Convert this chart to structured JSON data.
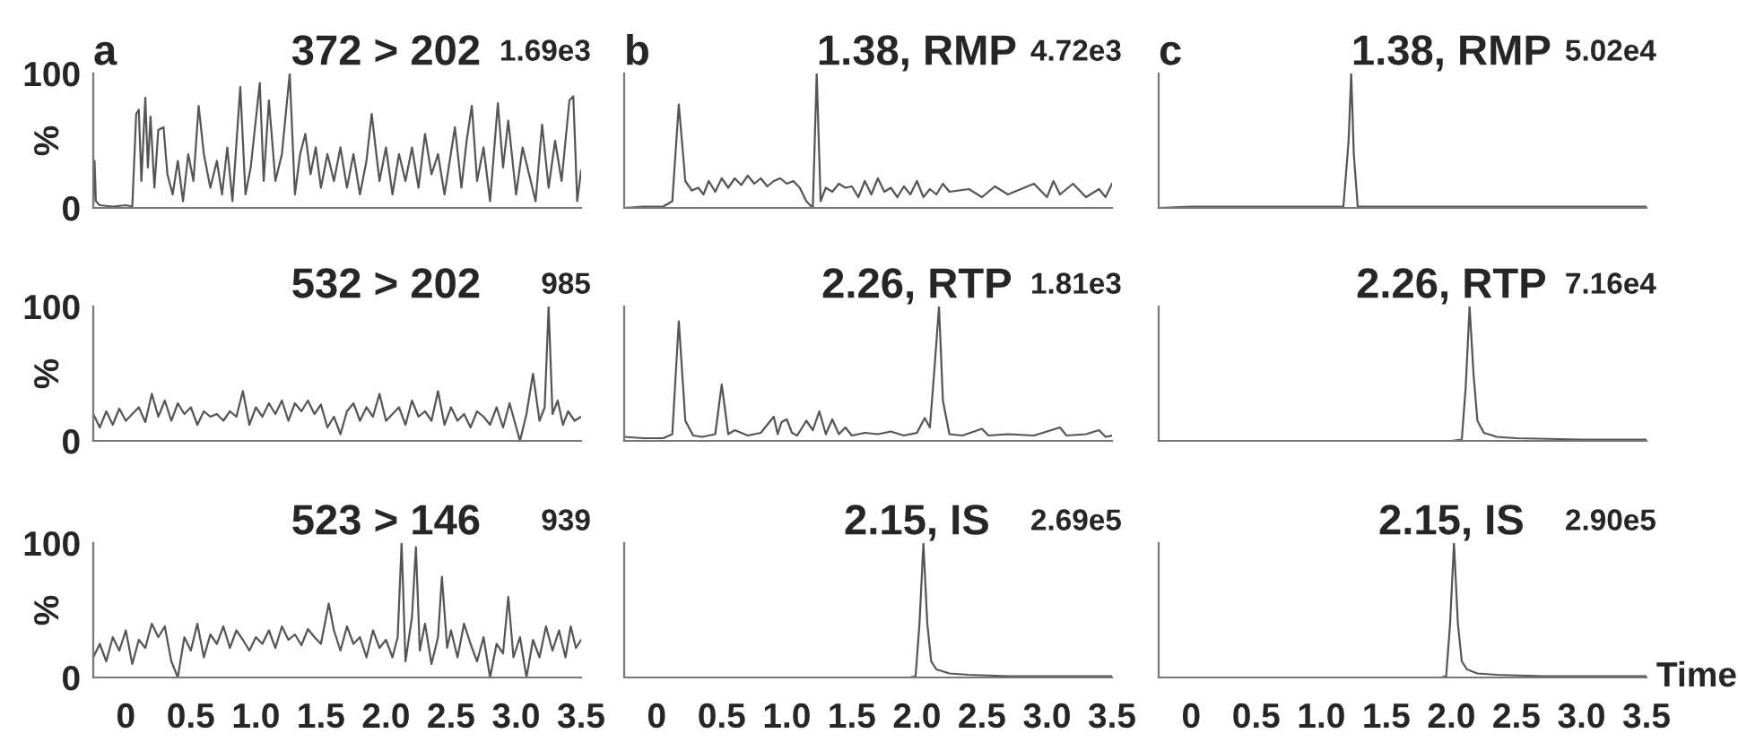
{
  "chart_data": [
    {
      "type": "line",
      "title": "372 > 202",
      "annotations": [
        "a",
        "1.69e3"
      ],
      "ylabel": "%",
      "tick_labels": "y",
      "xlim": [
        -0.25,
        3.5
      ],
      "xticks": [
        0,
        0.5,
        1,
        1.5,
        2,
        2.5,
        3,
        3.5
      ],
      "ylim": [
        0,
        100
      ],
      "yticks": [
        0,
        100
      ],
      "series": [
        {
          "color": "#555555",
          "x": [
            -0.25,
            -0.24,
            -0.23,
            -0.2,
            -0.1,
            0.0,
            0.05,
            0.08,
            0.1,
            0.12,
            0.15,
            0.17,
            0.19,
            0.22,
            0.25,
            0.29,
            0.32,
            0.36,
            0.4,
            0.44,
            0.48,
            0.52,
            0.56,
            0.6,
            0.65,
            0.7,
            0.74,
            0.78,
            0.82,
            0.88,
            0.92,
            0.96,
            1.03,
            1.06,
            1.1,
            1.15,
            1.2,
            1.26,
            1.3,
            1.34,
            1.38,
            1.42,
            1.46,
            1.5,
            1.55,
            1.6,
            1.65,
            1.7,
            1.75,
            1.8,
            1.85,
            1.89,
            1.95,
            2.0,
            2.05,
            2.1,
            2.15,
            2.2,
            2.25,
            2.3,
            2.35,
            2.4,
            2.45,
            2.53,
            2.58,
            2.62,
            2.66,
            2.7,
            2.75,
            2.8,
            2.86,
            2.9,
            2.94,
            3.0,
            3.05,
            3.1,
            3.15,
            3.2,
            3.25,
            3.3,
            3.35,
            3.41,
            3.44,
            3.47,
            3.5
          ],
          "values": [
            2,
            35,
            5,
            2,
            1,
            2,
            1,
            70,
            73,
            20,
            82,
            30,
            68,
            15,
            58,
            60,
            25,
            10,
            35,
            5,
            40,
            20,
            76,
            40,
            15,
            35,
            10,
            45,
            5,
            90,
            10,
            30,
            93,
            20,
            80,
            20,
            40,
            100,
            10,
            40,
            55,
            25,
            45,
            15,
            40,
            20,
            45,
            15,
            40,
            10,
            35,
            70,
            20,
            45,
            10,
            40,
            20,
            45,
            15,
            55,
            25,
            40,
            10,
            60,
            15,
            50,
            76,
            20,
            45,
            5,
            78,
            30,
            65,
            10,
            45,
            25,
            5,
            62,
            15,
            50,
            20,
            80,
            83,
            5,
            28
          ]
        }
      ]
    },
    {
      "type": "line",
      "title": "1.38, RMP",
      "annotations": [
        "b",
        "4.72e3"
      ],
      "tick_labels": false,
      "xlim": [
        -0.25,
        3.5
      ],
      "xticks": [
        0,
        0.5,
        1,
        1.5,
        2,
        2.5,
        3,
        3.5
      ],
      "ylim": [
        0,
        100
      ],
      "yticks": [
        0,
        100
      ],
      "series": [
        {
          "color": "#555555",
          "x": [
            -0.25,
            -0.1,
            0.05,
            0.12,
            0.17,
            0.22,
            0.27,
            0.32,
            0.36,
            0.4,
            0.45,
            0.5,
            0.55,
            0.6,
            0.65,
            0.7,
            0.75,
            0.8,
            0.85,
            0.9,
            0.95,
            1.0,
            1.05,
            1.1,
            1.15,
            1.2,
            1.23,
            1.26,
            1.3,
            1.35,
            1.4,
            1.45,
            1.5,
            1.55,
            1.6,
            1.65,
            1.7,
            1.75,
            1.8,
            1.85,
            1.9,
            1.95,
            2.0,
            2.05,
            2.1,
            2.15,
            2.2,
            2.25,
            2.4,
            2.5,
            2.6,
            2.7,
            2.8,
            2.9,
            3.0,
            3.05,
            3.1,
            3.2,
            3.3,
            3.4,
            3.45,
            3.5
          ],
          "values": [
            0,
            1,
            1,
            5,
            77,
            20,
            13,
            15,
            10,
            20,
            12,
            22,
            15,
            22,
            17,
            24,
            18,
            22,
            16,
            20,
            22,
            18,
            20,
            15,
            5,
            0,
            100,
            5,
            15,
            12,
            18,
            15,
            16,
            8,
            20,
            10,
            22,
            12,
            15,
            8,
            16,
            10,
            20,
            8,
            14,
            10,
            18,
            12,
            14,
            8,
            16,
            10,
            14,
            18,
            8,
            20,
            10,
            18,
            8,
            14,
            8,
            18
          ]
        }
      ]
    },
    {
      "type": "line",
      "title": "1.38, RMP",
      "annotations": [
        "c",
        "5.02e4"
      ],
      "tick_labels": false,
      "xlim": [
        -0.25,
        3.5
      ],
      "xticks": [
        0,
        0.5,
        1,
        1.5,
        2,
        2.5,
        3,
        3.5
      ],
      "ylim": [
        0,
        100
      ],
      "yticks": [
        0,
        100
      ],
      "series": [
        {
          "color": "#555555",
          "x": [
            -0.25,
            0.0,
            0.5,
            1.0,
            1.17,
            1.21,
            1.23,
            1.25,
            1.28,
            2.0,
            3.0,
            3.5
          ],
          "values": [
            0,
            1,
            1,
            1,
            1,
            50,
            100,
            40,
            1,
            1,
            1,
            1
          ]
        }
      ]
    },
    {
      "type": "line",
      "title": "532 > 202",
      "annotations": [
        "985"
      ],
      "ylabel": "%",
      "tick_labels": "y",
      "xlim": [
        -0.25,
        3.5
      ],
      "xticks": [
        0,
        0.5,
        1,
        1.5,
        2,
        2.5,
        3,
        3.5
      ],
      "ylim": [
        0,
        100
      ],
      "yticks": [
        0,
        100
      ],
      "series": [
        {
          "color": "#555555",
          "x": [
            -0.25,
            -0.2,
            -0.15,
            -0.1,
            -0.05,
            0.0,
            0.05,
            0.1,
            0.15,
            0.2,
            0.25,
            0.3,
            0.35,
            0.4,
            0.45,
            0.5,
            0.55,
            0.6,
            0.65,
            0.7,
            0.75,
            0.8,
            0.85,
            0.9,
            0.95,
            1.0,
            1.05,
            1.1,
            1.15,
            1.2,
            1.25,
            1.3,
            1.35,
            1.4,
            1.45,
            1.5,
            1.55,
            1.6,
            1.65,
            1.7,
            1.75,
            1.8,
            1.85,
            1.9,
            1.95,
            2.0,
            2.05,
            2.1,
            2.15,
            2.2,
            2.25,
            2.3,
            2.35,
            2.4,
            2.45,
            2.5,
            2.55,
            2.6,
            2.65,
            2.7,
            2.75,
            2.8,
            2.85,
            2.9,
            2.95,
            3.03,
            3.08,
            3.13,
            3.18,
            3.22,
            3.25,
            3.28,
            3.32,
            3.36,
            3.4,
            3.45,
            3.5
          ],
          "values": [
            20,
            10,
            22,
            12,
            24,
            15,
            20,
            25,
            14,
            35,
            18,
            30,
            15,
            28,
            20,
            25,
            12,
            22,
            18,
            20,
            15,
            22,
            18,
            37,
            12,
            25,
            18,
            28,
            20,
            30,
            15,
            28,
            22,
            30,
            20,
            27,
            10,
            18,
            5,
            22,
            28,
            15,
            25,
            18,
            35,
            15,
            20,
            25,
            12,
            30,
            18,
            22,
            15,
            37,
            12,
            25,
            15,
            20,
            10,
            22,
            18,
            12,
            25,
            10,
            28,
            0,
            20,
            50,
            15,
            25,
            100,
            20,
            30,
            12,
            22,
            15,
            18
          ]
        }
      ]
    },
    {
      "type": "line",
      "title": "2.26, RTP",
      "annotations": [
        "1.81e3"
      ],
      "tick_labels": false,
      "xlim": [
        -0.25,
        3.5
      ],
      "xticks": [
        0,
        0.5,
        1,
        1.5,
        2,
        2.5,
        3,
        3.5
      ],
      "ylim": [
        0,
        100
      ],
      "yticks": [
        0,
        100
      ],
      "series": [
        {
          "color": "#555555",
          "x": [
            -0.25,
            -0.1,
            0.05,
            0.12,
            0.17,
            0.22,
            0.28,
            0.35,
            0.45,
            0.5,
            0.55,
            0.6,
            0.7,
            0.8,
            0.9,
            0.93,
            0.96,
            1.0,
            1.04,
            1.08,
            1.15,
            1.2,
            1.25,
            1.3,
            1.35,
            1.4,
            1.45,
            1.5,
            1.6,
            1.7,
            1.8,
            1.9,
            2.0,
            2.06,
            2.1,
            2.14,
            2.17,
            2.2,
            2.25,
            2.35,
            2.5,
            2.55,
            2.7,
            2.9,
            3.1,
            3.15,
            3.3,
            3.4,
            3.45,
            3.5
          ],
          "values": [
            3,
            2,
            2,
            5,
            89,
            15,
            4,
            3,
            5,
            42,
            5,
            8,
            4,
            6,
            18,
            5,
            14,
            16,
            6,
            4,
            15,
            8,
            22,
            5,
            16,
            5,
            10,
            4,
            6,
            5,
            7,
            4,
            6,
            17,
            10,
            60,
            100,
            30,
            5,
            4,
            9,
            4,
            5,
            4,
            10,
            4,
            5,
            8,
            3,
            4
          ]
        }
      ]
    },
    {
      "type": "line",
      "title": "2.26, RTP",
      "annotations": [
        "7.16e4"
      ],
      "tick_labels": false,
      "xlim": [
        -0.25,
        3.5
      ],
      "xticks": [
        0,
        0.5,
        1,
        1.5,
        2,
        2.5,
        3,
        3.5
      ],
      "ylim": [
        0,
        100
      ],
      "yticks": [
        0,
        100
      ],
      "series": [
        {
          "color": "#555555",
          "x": [
            -0.25,
            0.0,
            1.0,
            2.0,
            2.08,
            2.11,
            2.14,
            2.17,
            2.2,
            2.25,
            2.35,
            2.5,
            3.0,
            3.5
          ],
          "values": [
            0,
            0,
            0,
            0,
            1,
            40,
            100,
            50,
            15,
            6,
            3,
            2,
            1,
            1
          ]
        }
      ]
    },
    {
      "type": "line",
      "title": "523 > 146",
      "annotations": [
        "939"
      ],
      "ylabel": "%",
      "xlim": [
        -0.25,
        3.5
      ],
      "xticks": [
        0,
        0.5,
        {
          "value": 1,
          "label": "1.0"
        },
        1.5,
        {
          "value": 2,
          "label": "2.0"
        },
        2.5,
        {
          "value": 3,
          "label": "3.0"
        },
        3.5
      ],
      "ylim": [
        0,
        100
      ],
      "yticks": [
        0,
        100
      ],
      "series": [
        {
          "color": "#555555",
          "x": [
            -0.25,
            -0.2,
            -0.15,
            -0.1,
            -0.05,
            0.0,
            0.05,
            0.1,
            0.15,
            0.2,
            0.25,
            0.3,
            0.35,
            0.4,
            0.45,
            0.5,
            0.55,
            0.6,
            0.65,
            0.7,
            0.75,
            0.8,
            0.85,
            0.9,
            0.95,
            1.0,
            1.05,
            1.1,
            1.15,
            1.2,
            1.25,
            1.3,
            1.35,
            1.4,
            1.45,
            1.5,
            1.56,
            1.6,
            1.65,
            1.7,
            1.75,
            1.8,
            1.85,
            1.9,
            1.95,
            2.0,
            2.05,
            2.09,
            2.12,
            2.15,
            2.2,
            2.23,
            2.26,
            2.3,
            2.35,
            2.4,
            2.43,
            2.47,
            2.5,
            2.55,
            2.6,
            2.65,
            2.7,
            2.75,
            2.8,
            2.85,
            2.9,
            2.94,
            2.98,
            3.03,
            3.08,
            3.13,
            3.18,
            3.23,
            3.28,
            3.33,
            3.38,
            3.42,
            3.46,
            3.5
          ],
          "values": [
            15,
            25,
            12,
            30,
            20,
            35,
            10,
            28,
            22,
            40,
            30,
            38,
            12,
            0,
            30,
            20,
            40,
            15,
            32,
            25,
            38,
            22,
            35,
            28,
            20,
            30,
            25,
            35,
            22,
            38,
            28,
            32,
            24,
            36,
            30,
            25,
            55,
            35,
            20,
            38,
            25,
            30,
            15,
            35,
            22,
            28,
            15,
            30,
            100,
            12,
            45,
            97,
            20,
            40,
            10,
            30,
            75,
            22,
            35,
            15,
            40,
            25,
            12,
            30,
            0,
            25,
            18,
            60,
            15,
            30,
            0,
            28,
            15,
            38,
            20,
            35,
            15,
            38,
            22,
            28
          ]
        }
      ]
    },
    {
      "type": "line",
      "title": "2.15, IS",
      "annotations": [
        "2.69e5"
      ],
      "tick_labels": "x",
      "xlim": [
        -0.25,
        3.5
      ],
      "xticks": [
        0,
        0.5,
        {
          "value": 1,
          "label": "1.0"
        },
        1.5,
        {
          "value": 2,
          "label": "2.0"
        },
        2.5,
        {
          "value": 3,
          "label": "3.0"
        },
        3.5
      ],
      "ylim": [
        0,
        100
      ],
      "yticks": [
        0,
        100
      ],
      "series": [
        {
          "color": "#555555",
          "x": [
            -0.25,
            0.0,
            1.0,
            1.95,
            1.99,
            2.02,
            2.05,
            2.08,
            2.11,
            2.15,
            2.25,
            2.4,
            2.7,
            3.5
          ],
          "values": [
            0,
            0,
            0,
            0,
            1,
            40,
            100,
            40,
            12,
            6,
            3,
            2,
            1,
            1
          ]
        }
      ]
    },
    {
      "type": "line",
      "title": "2.15, IS",
      "annotations": [
        "2.90e5"
      ],
      "xlabel": "Time",
      "tick_labels": "x",
      "xlim": [
        -0.25,
        3.5
      ],
      "xticks": [
        0,
        0.5,
        {
          "value": 1,
          "label": "1.0"
        },
        1.5,
        {
          "value": 2,
          "label": "2.0"
        },
        2.5,
        {
          "value": 3,
          "label": "3.0"
        },
        3.5
      ],
      "ylim": [
        0,
        100
      ],
      "yticks": [
        0,
        100
      ],
      "series": [
        {
          "color": "#555555",
          "x": [
            -0.25,
            0.0,
            1.0,
            1.92,
            1.96,
            1.99,
            2.02,
            2.05,
            2.08,
            2.12,
            2.2,
            2.35,
            2.7,
            3.5
          ],
          "values": [
            0,
            0,
            0,
            0,
            1,
            40,
            100,
            40,
            12,
            6,
            3,
            2,
            1,
            1
          ]
        }
      ]
    }
  ]
}
